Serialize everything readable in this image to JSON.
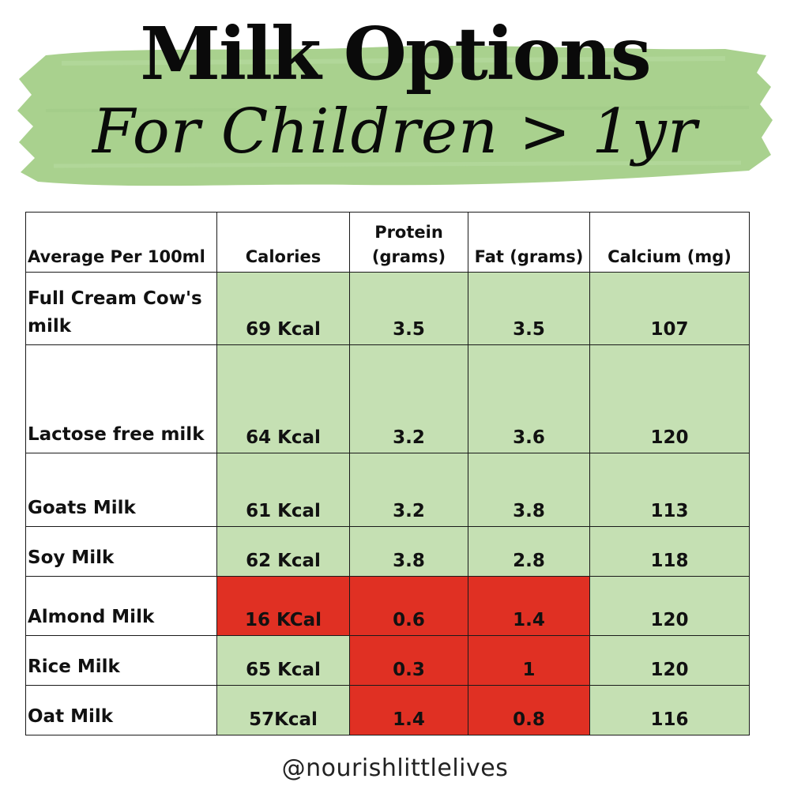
{
  "header": {
    "title": "Milk Options",
    "subtitle": "For Children > 1yr"
  },
  "colors": {
    "brush_green": "#a9d18e",
    "cell_green": "#c5e0b3",
    "cell_red": "#e03023"
  },
  "table": {
    "headers": [
      "Average Per 100ml",
      "Calories",
      "Protein (grams)",
      "Fat (grams)",
      "Calcium (mg)"
    ],
    "rows": [
      {
        "name": "Full Cream Cow's milk",
        "values": [
          "69 Kcal",
          "3.5",
          "3.5",
          "107"
        ],
        "flags": [
          "g",
          "g",
          "g",
          "g"
        ]
      },
      {
        "name": "Lactose free milk",
        "values": [
          "64 Kcal",
          "3.2",
          "3.6",
          "120"
        ],
        "flags": [
          "g",
          "g",
          "g",
          "g"
        ]
      },
      {
        "name": "Goats Milk",
        "values": [
          "61 Kcal",
          "3.2",
          "3.8",
          "113"
        ],
        "flags": [
          "g",
          "g",
          "g",
          "g"
        ]
      },
      {
        "name": "Soy Milk",
        "values": [
          "62 Kcal",
          "3.8",
          "2.8",
          "118"
        ],
        "flags": [
          "g",
          "g",
          "g",
          "g"
        ]
      },
      {
        "name": "Almond Milk",
        "values": [
          "16 KCal",
          "0.6",
          "1.4",
          "120"
        ],
        "flags": [
          "r",
          "r",
          "r",
          "g"
        ]
      },
      {
        "name": "Rice Milk",
        "values": [
          "65 Kcal",
          "0.3",
          "1",
          "120"
        ],
        "flags": [
          "g",
          "r",
          "r",
          "g"
        ]
      },
      {
        "name": "Oat Milk",
        "values": [
          "57Kcal",
          "1.4",
          "0.8",
          "116"
        ],
        "flags": [
          "g",
          "r",
          "r",
          "g"
        ]
      }
    ]
  },
  "footer": {
    "handle": "@nourishlittlelives"
  }
}
